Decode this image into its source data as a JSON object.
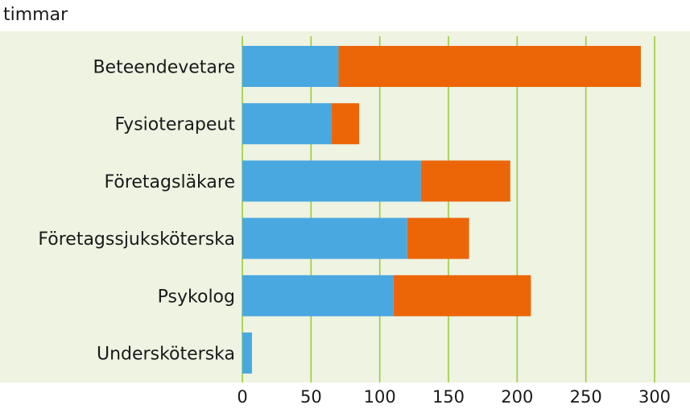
{
  "chart_data": {
    "type": "bar",
    "orientation": "horizontal",
    "stacked": true,
    "unit_label": "timmar",
    "categories": [
      "Beteendevetare",
      "Fysioterapeut",
      "Företagsläkare",
      "Företagssjuksköterska",
      "Psykolog",
      "Undersköterska"
    ],
    "series": [
      {
        "color": "#4aa8e0",
        "values": [
          70,
          65,
          130,
          120,
          110,
          7
        ]
      },
      {
        "color": "#ec6608",
        "values": [
          220,
          20,
          65,
          45,
          100,
          0
        ]
      }
    ],
    "xlim": [
      0,
      300
    ],
    "xticks": [
      0,
      50,
      100,
      150,
      200,
      250,
      300
    ],
    "grid": "vertical",
    "grid_color": "#9ccc3a",
    "plot_background": "#eef3e2"
  }
}
